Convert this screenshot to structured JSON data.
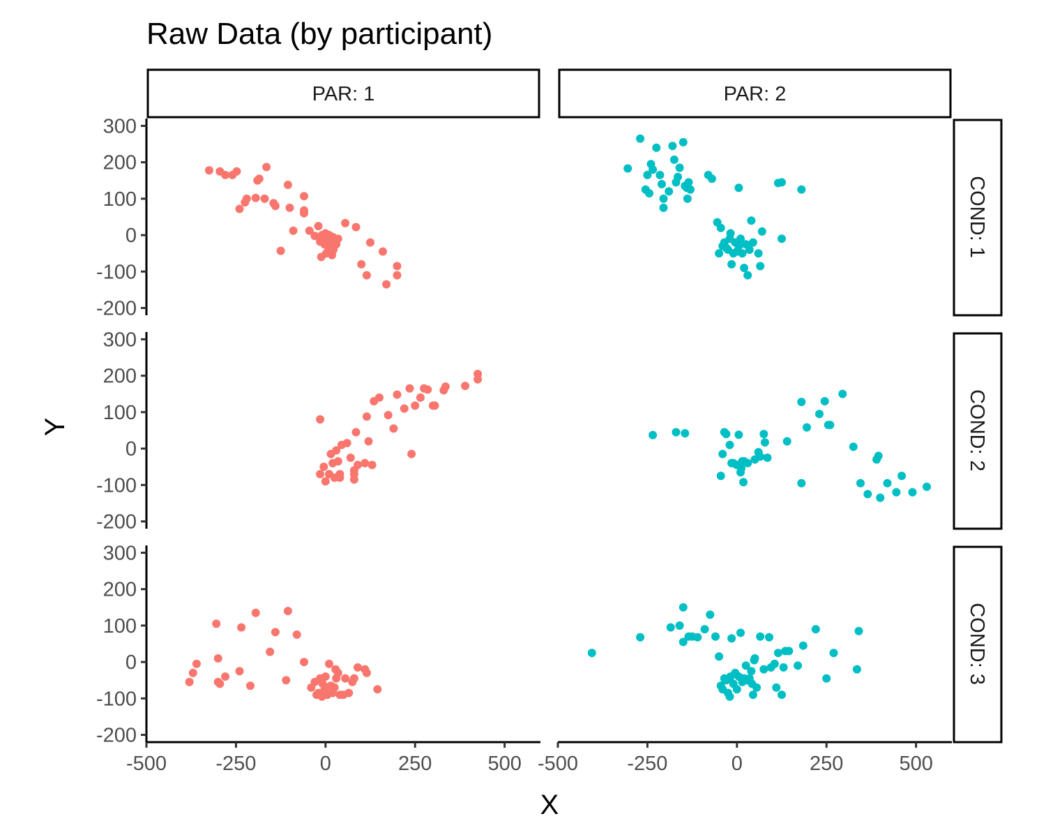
{
  "chart_data": {
    "type": "scatter",
    "title": "Raw Data (by participant)",
    "xlabel": "X",
    "ylabel": "Y",
    "xlim": [
      -500,
      600
    ],
    "ylim": [
      -220,
      320
    ],
    "x_ticks": [
      -500,
      -250,
      0,
      250,
      500
    ],
    "x_tick_labels": [
      "-500",
      "-250",
      "0",
      "250",
      "500"
    ],
    "y_ticks": [
      -200,
      -100,
      0,
      100,
      200,
      300
    ],
    "y_tick_labels": [
      "-200",
      "-100",
      "0",
      "100",
      "200",
      "300"
    ],
    "grid": false,
    "legend": "none",
    "colors": {
      "PAR: 1": "#F8766D",
      "PAR: 2": "#00BFC4"
    },
    "col_facets": [
      "PAR: 1",
      "PAR: 2"
    ],
    "row_facets": [
      "COND: 1",
      "COND: 2",
      "COND: 3"
    ],
    "panels": [
      {
        "col": "PAR: 1",
        "row": "COND: 1",
        "points": [
          [
            -325,
            178
          ],
          [
            -295,
            175
          ],
          [
            -280,
            165
          ],
          [
            -260,
            165
          ],
          [
            -248,
            175
          ],
          [
            -240,
            72
          ],
          [
            -225,
            90
          ],
          [
            -220,
            100
          ],
          [
            -195,
            102
          ],
          [
            -190,
            150
          ],
          [
            -185,
            155
          ],
          [
            -170,
            100
          ],
          [
            -165,
            187
          ],
          [
            -145,
            88
          ],
          [
            -140,
            80
          ],
          [
            -125,
            -43
          ],
          [
            -105,
            138
          ],
          [
            -100,
            75
          ],
          [
            -90,
            12
          ],
          [
            -60,
            60
          ],
          [
            -60,
            68
          ],
          [
            -60,
            107
          ],
          [
            -45,
            12
          ],
          [
            -30,
            -2
          ],
          [
            -20,
            25
          ],
          [
            -15,
            -18
          ],
          [
            -12,
            -60
          ],
          [
            -10,
            0
          ],
          [
            -5,
            -10
          ],
          [
            -3,
            -25
          ],
          [
            0,
            5
          ],
          [
            2,
            -50
          ],
          [
            5,
            -20
          ],
          [
            8,
            -35
          ],
          [
            10,
            0
          ],
          [
            12,
            -12
          ],
          [
            15,
            -30
          ],
          [
            18,
            -55
          ],
          [
            20,
            -5
          ],
          [
            22,
            -40
          ],
          [
            25,
            -15
          ],
          [
            30,
            -25
          ],
          [
            35,
            -10
          ],
          [
            55,
            33
          ],
          [
            85,
            22
          ],
          [
            100,
            -80
          ],
          [
            115,
            -110
          ],
          [
            125,
            -20
          ],
          [
            160,
            -45
          ],
          [
            170,
            -135
          ],
          [
            200,
            -85
          ],
          [
            200,
            -110
          ]
        ]
      },
      {
        "col": "PAR: 1",
        "row": "COND: 2",
        "points": [
          [
            -15,
            80
          ],
          [
            -15,
            -70
          ],
          [
            -5,
            -50
          ],
          [
            0,
            -90
          ],
          [
            10,
            -70
          ],
          [
            15,
            -15
          ],
          [
            20,
            -40
          ],
          [
            25,
            -80
          ],
          [
            30,
            -5
          ],
          [
            35,
            -35
          ],
          [
            40,
            -70
          ],
          [
            40,
            -80
          ],
          [
            45,
            10
          ],
          [
            60,
            15
          ],
          [
            70,
            -25
          ],
          [
            80,
            -60
          ],
          [
            80,
            -70
          ],
          [
            80,
            -85
          ],
          [
            85,
            45
          ],
          [
            90,
            -45
          ],
          [
            110,
            -40
          ],
          [
            115,
            88
          ],
          [
            120,
            20
          ],
          [
            130,
            -45
          ],
          [
            135,
            130
          ],
          [
            150,
            140
          ],
          [
            175,
            92
          ],
          [
            190,
            55
          ],
          [
            200,
            148
          ],
          [
            220,
            110
          ],
          [
            235,
            165
          ],
          [
            240,
            -15
          ],
          [
            250,
            118
          ],
          [
            265,
            140
          ],
          [
            275,
            165
          ],
          [
            285,
            162
          ],
          [
            300,
            118
          ],
          [
            305,
            118
          ],
          [
            330,
            160
          ],
          [
            335,
            170
          ],
          [
            390,
            172
          ],
          [
            425,
            205
          ],
          [
            425,
            190
          ]
        ]
      },
      {
        "col": "PAR: 1",
        "row": "COND: 3",
        "points": [
          [
            -380,
            -55
          ],
          [
            -370,
            -30
          ],
          [
            -360,
            -5
          ],
          [
            -305,
            105
          ],
          [
            -300,
            -55
          ],
          [
            -300,
            10
          ],
          [
            -295,
            -60
          ],
          [
            -280,
            -40
          ],
          [
            -240,
            -25
          ],
          [
            -235,
            95
          ],
          [
            -210,
            -65
          ],
          [
            -195,
            135
          ],
          [
            -155,
            28
          ],
          [
            -140,
            82
          ],
          [
            -110,
            -50
          ],
          [
            -105,
            140
          ],
          [
            -80,
            75
          ],
          [
            -60,
            0
          ],
          [
            -40,
            -70
          ],
          [
            -30,
            -55
          ],
          [
            -25,
            -90
          ],
          [
            -20,
            -85
          ],
          [
            -15,
            -45
          ],
          [
            -10,
            -95
          ],
          [
            -8,
            -60
          ],
          [
            -5,
            -80
          ],
          [
            0,
            -40
          ],
          [
            2,
            -70
          ],
          [
            5,
            -90
          ],
          [
            10,
            -5
          ],
          [
            15,
            -65
          ],
          [
            20,
            -85
          ],
          [
            25,
            -70
          ],
          [
            28,
            -20
          ],
          [
            30,
            -45
          ],
          [
            35,
            -30
          ],
          [
            40,
            -90
          ],
          [
            50,
            -90
          ],
          [
            55,
            -45
          ],
          [
            65,
            -85
          ],
          [
            75,
            -55
          ],
          [
            80,
            -45
          ],
          [
            90,
            -15
          ],
          [
            110,
            -20
          ],
          [
            115,
            -30
          ],
          [
            145,
            -75
          ]
        ]
      },
      {
        "col": "PAR: 2",
        "row": "COND: 1",
        "points": [
          [
            -305,
            183
          ],
          [
            -270,
            265
          ],
          [
            -255,
            125
          ],
          [
            -250,
            165
          ],
          [
            -245,
            115
          ],
          [
            -240,
            195
          ],
          [
            -235,
            180
          ],
          [
            -225,
            240
          ],
          [
            -215,
            165
          ],
          [
            -210,
            140
          ],
          [
            -205,
            75
          ],
          [
            -205,
            100
          ],
          [
            -190,
            120
          ],
          [
            -180,
            245
          ],
          [
            -175,
            207
          ],
          [
            -170,
            145
          ],
          [
            -165,
            160
          ],
          [
            -160,
            185
          ],
          [
            -150,
            255
          ],
          [
            -145,
            135
          ],
          [
            -140,
            130
          ],
          [
            -138,
            100
          ],
          [
            -135,
            145
          ],
          [
            -130,
            125
          ],
          [
            -80,
            165
          ],
          [
            -70,
            155
          ],
          [
            -55,
            35
          ],
          [
            -50,
            -50
          ],
          [
            -45,
            20
          ],
          [
            -40,
            -30
          ],
          [
            -35,
            -20
          ],
          [
            -30,
            -35
          ],
          [
            -25,
            -40
          ],
          [
            -20,
            -10
          ],
          [
            -18,
            5
          ],
          [
            -15,
            -80
          ],
          [
            -10,
            -50
          ],
          [
            -5,
            -20
          ],
          [
            0,
            -45
          ],
          [
            5,
            -30
          ],
          [
            10,
            -10
          ],
          [
            15,
            -50
          ],
          [
            20,
            -90
          ],
          [
            25,
            -25
          ],
          [
            30,
            -110
          ],
          [
            35,
            -40
          ],
          [
            40,
            40
          ],
          [
            45,
            -20
          ],
          [
            60,
            -50
          ],
          [
            65,
            -85
          ],
          [
            70,
            10
          ],
          [
            125,
            -10
          ],
          [
            5,
            130
          ],
          [
            115,
            143
          ],
          [
            125,
            145
          ],
          [
            180,
            125
          ]
        ]
      },
      {
        "col": "PAR: 2",
        "row": "COND: 2",
        "points": [
          [
            -235,
            37
          ],
          [
            -170,
            45
          ],
          [
            -145,
            42
          ],
          [
            -45,
            -75
          ],
          [
            -40,
            -15
          ],
          [
            -35,
            45
          ],
          [
            -30,
            40
          ],
          [
            -20,
            10
          ],
          [
            -15,
            -40
          ],
          [
            -10,
            -40
          ],
          [
            0,
            -45
          ],
          [
            5,
            38
          ],
          [
            10,
            -65
          ],
          [
            12,
            -55
          ],
          [
            15,
            -35
          ],
          [
            18,
            -92
          ],
          [
            20,
            -35
          ],
          [
            30,
            -40
          ],
          [
            50,
            -30
          ],
          [
            60,
            -10
          ],
          [
            65,
            -22
          ],
          [
            75,
            40
          ],
          [
            78,
            17
          ],
          [
            85,
            -25
          ],
          [
            140,
            20
          ],
          [
            180,
            128
          ],
          [
            180,
            -95
          ],
          [
            195,
            58
          ],
          [
            230,
            95
          ],
          [
            245,
            130
          ],
          [
            255,
            65
          ],
          [
            260,
            65
          ],
          [
            295,
            150
          ],
          [
            325,
            5
          ],
          [
            345,
            -95
          ],
          [
            365,
            -125
          ],
          [
            390,
            -30
          ],
          [
            395,
            -20
          ],
          [
            400,
            -135
          ],
          [
            420,
            -95
          ],
          [
            445,
            -120
          ],
          [
            460,
            -75
          ],
          [
            490,
            -120
          ],
          [
            530,
            -105
          ]
        ]
      },
      {
        "col": "PAR: 2",
        "row": "COND: 3",
        "points": [
          [
            -405,
            25
          ],
          [
            -270,
            68
          ],
          [
            -185,
            95
          ],
          [
            -160,
            100
          ],
          [
            -150,
            150
          ],
          [
            -150,
            55
          ],
          [
            -135,
            70
          ],
          [
            -125,
            70
          ],
          [
            -110,
            68
          ],
          [
            -90,
            90
          ],
          [
            -75,
            130
          ],
          [
            -60,
            70
          ],
          [
            -50,
            15
          ],
          [
            -45,
            -65
          ],
          [
            -40,
            -75
          ],
          [
            -35,
            -45
          ],
          [
            -30,
            -50
          ],
          [
            -25,
            -85
          ],
          [
            -20,
            -95
          ],
          [
            -18,
            -40
          ],
          [
            -15,
            65
          ],
          [
            -10,
            -60
          ],
          [
            -5,
            -30
          ],
          [
            0,
            -75
          ],
          [
            5,
            -40
          ],
          [
            10,
            80
          ],
          [
            15,
            -55
          ],
          [
            20,
            -45
          ],
          [
            25,
            -10
          ],
          [
            30,
            -50
          ],
          [
            35,
            -45
          ],
          [
            40,
            -25
          ],
          [
            42,
            -60
          ],
          [
            45,
            -90
          ],
          [
            48,
            5
          ],
          [
            50,
            10
          ],
          [
            55,
            -70
          ],
          [
            65,
            70
          ],
          [
            75,
            -20
          ],
          [
            90,
            68
          ],
          [
            95,
            -15
          ],
          [
            105,
            -5
          ],
          [
            110,
            -70
          ],
          [
            115,
            25
          ],
          [
            125,
            -90
          ],
          [
            130,
            -15
          ],
          [
            135,
            30
          ],
          [
            145,
            30
          ],
          [
            170,
            -10
          ],
          [
            185,
            45
          ],
          [
            220,
            90
          ],
          [
            250,
            -45
          ],
          [
            270,
            25
          ],
          [
            335,
            -20
          ],
          [
            340,
            85
          ]
        ]
      }
    ]
  }
}
